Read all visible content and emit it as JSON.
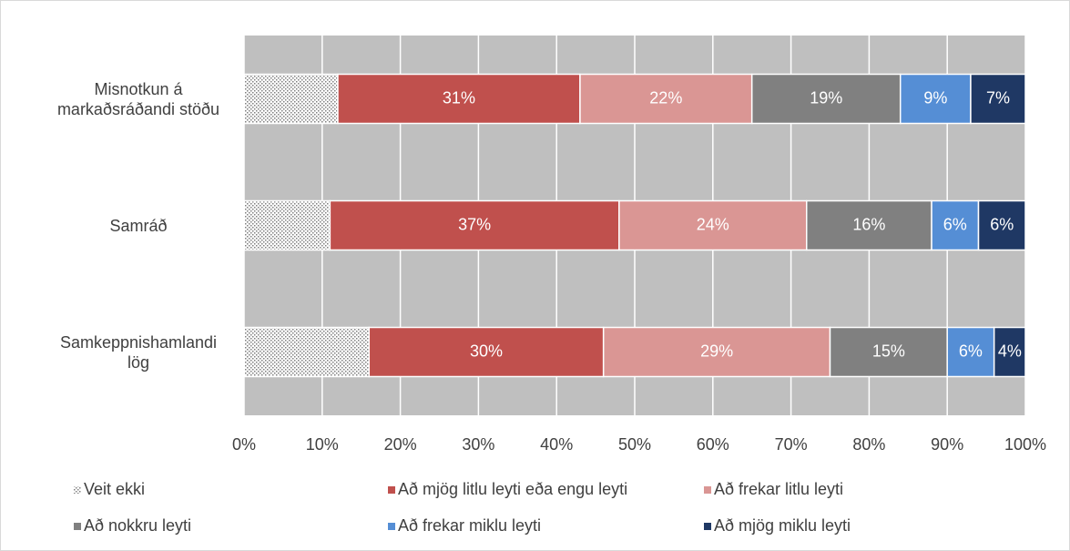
{
  "chart_data": {
    "type": "stacked_barh",
    "categories": [
      "Misnotkun á markaðsráðandi stöðu",
      "Samráð",
      "Samkeppnishamlandi lög"
    ],
    "series": [
      {
        "name": "Veit ekki",
        "color": "pattern",
        "values": [
          12,
          11,
          16
        ]
      },
      {
        "name": "Að mjög litlu leyti eða engu leyti",
        "color": "#c0504d",
        "values": [
          31,
          37,
          30
        ],
        "value_labels": [
          "31%",
          "37%",
          "30%"
        ]
      },
      {
        "name": "Að frekar litlu leyti",
        "color": "#da9694",
        "values": [
          22,
          24,
          29
        ],
        "value_labels": [
          "22%",
          "24%",
          "29%"
        ]
      },
      {
        "name": "Að nokkru leyti",
        "color": "#808080",
        "values": [
          19,
          16,
          15
        ],
        "value_labels": [
          "19%",
          "16%",
          "15%"
        ]
      },
      {
        "name": "Að frekar miklu leyti",
        "color": "#558ed5",
        "values": [
          9,
          6,
          6
        ],
        "value_labels": [
          "9%",
          "6%",
          "6%"
        ]
      },
      {
        "name": "Að mjög miklu leyti",
        "color": "#1f3864",
        "values": [
          7,
          6,
          4
        ],
        "value_labels": [
          "7%",
          "6%",
          "4%"
        ]
      }
    ],
    "xlim": [
      0,
      100
    ],
    "xticks": [
      {
        "value": 0,
        "label": "0%"
      },
      {
        "value": 10,
        "label": "10%"
      },
      {
        "value": 20,
        "label": "20%"
      },
      {
        "value": 30,
        "label": "30%"
      },
      {
        "value": 40,
        "label": "40%"
      },
      {
        "value": 50,
        "label": "50%"
      },
      {
        "value": 60,
        "label": "60%"
      },
      {
        "value": 70,
        "label": "70%"
      },
      {
        "value": 80,
        "label": "80%"
      },
      {
        "value": 90,
        "label": "90%"
      },
      {
        "value": 100,
        "label": "100%"
      }
    ],
    "grid": true,
    "legend": "bottom"
  }
}
